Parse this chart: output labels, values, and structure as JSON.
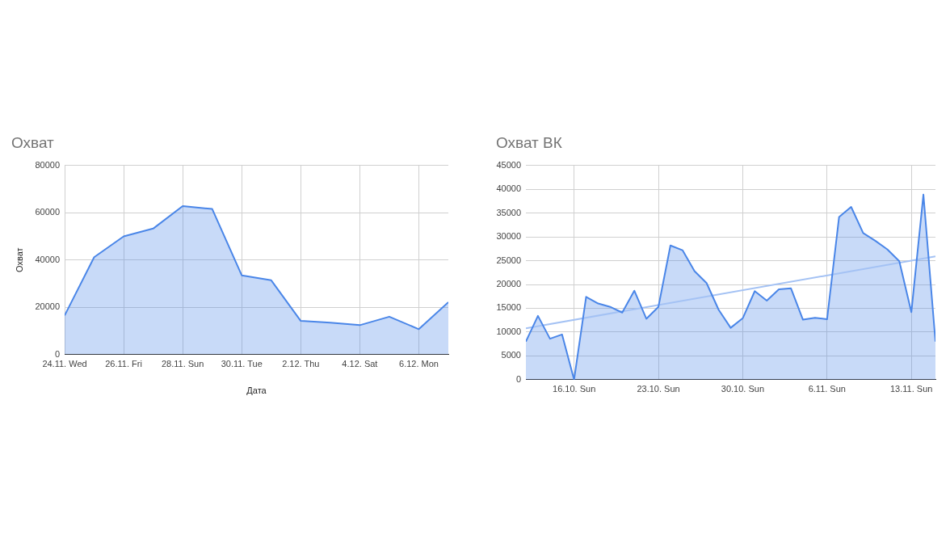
{
  "chart_data": [
    {
      "type": "area",
      "title": "Охват",
      "xlabel": "Дата",
      "ylabel": "Охват",
      "x": [
        "--11-24",
        "--11-25",
        "--11-26",
        "--11-27",
        "--11-28",
        "--11-29",
        "--11-30",
        "--12-01",
        "--12-02",
        "--12-03",
        "--12-04",
        "--12-05",
        "--12-06",
        "--12-07"
      ],
      "series": [
        {
          "color": "#4a86e8",
          "values": [
            16500,
            41200,
            50000,
            53300,
            62800,
            61600,
            33500,
            31400,
            14200,
            13500,
            12400,
            16000,
            10700,
            22100
          ]
        }
      ],
      "xlim": [
        "--11-24",
        "--12-07"
      ],
      "xticks": [
        {
          "value": "--11-24",
          "label": "24.11. Wed"
        },
        {
          "value": "--11-26",
          "label": "26.11. Fri"
        },
        {
          "value": "--11-28",
          "label": "28.11. Sun"
        },
        {
          "value": "--11-30",
          "label": "30.11. Tue"
        },
        {
          "value": "--12-02",
          "label": "2.12. Thu"
        },
        {
          "value": "--12-04",
          "label": "4.12. Sat"
        },
        {
          "value": "--12-06",
          "label": "6.12. Mon"
        }
      ],
      "ylim": [
        0,
        80000
      ],
      "yticks": [
        0,
        20000,
        40000,
        60000,
        80000
      ],
      "grid": true
    },
    {
      "type": "area",
      "title": "Охват ВК",
      "x": [
        "--10-12",
        "--10-13",
        "--10-14",
        "--10-15",
        "--10-16",
        "--10-17",
        "--10-18",
        "--10-19",
        "--10-20",
        "--10-21",
        "--10-22",
        "--10-23",
        "--10-24",
        "--10-25",
        "--10-26",
        "--10-27",
        "--10-28",
        "--10-29",
        "--10-30",
        "--10-31",
        "--11-01",
        "--11-02",
        "--11-03",
        "--11-04",
        "--11-05",
        "--11-06",
        "--11-07",
        "--11-08",
        "--11-09",
        "--11-10",
        "--11-11",
        "--11-12",
        "--11-13",
        "--11-14",
        "--11-15"
      ],
      "series": [
        {
          "color": "#4a86e8",
          "values": [
            8000,
            13400,
            8600,
            9500,
            0,
            17400,
            16000,
            15300,
            14100,
            18700,
            12800,
            15300,
            28200,
            27200,
            22800,
            20300,
            14700,
            10900,
            12900,
            18600,
            16600,
            19000,
            19200,
            12600,
            13000,
            12700,
            34200,
            36300,
            30800,
            29200,
            27400,
            24900,
            14200,
            38900,
            8000
          ]
        },
        {
          "type": "line",
          "color": "#a4c2f4",
          "x": [
            "--10-12",
            "--11-15"
          ],
          "values": [
            10800,
            25900
          ]
        }
      ],
      "xlim": [
        "--10-12",
        "--11-15"
      ],
      "xticks": [
        {
          "value": "--10-16",
          "label": "16.10. Sun"
        },
        {
          "value": "--10-23",
          "label": "23.10. Sun"
        },
        {
          "value": "--10-30",
          "label": "30.10. Sun"
        },
        {
          "value": "--11-06",
          "label": "6.11. Sun"
        },
        {
          "value": "--11-13",
          "label": "13.11. Sun"
        }
      ],
      "ylim": [
        0,
        45000
      ],
      "yticks": [
        0,
        5000,
        10000,
        15000,
        20000,
        25000,
        30000,
        35000,
        40000,
        45000
      ],
      "grid": true
    }
  ]
}
